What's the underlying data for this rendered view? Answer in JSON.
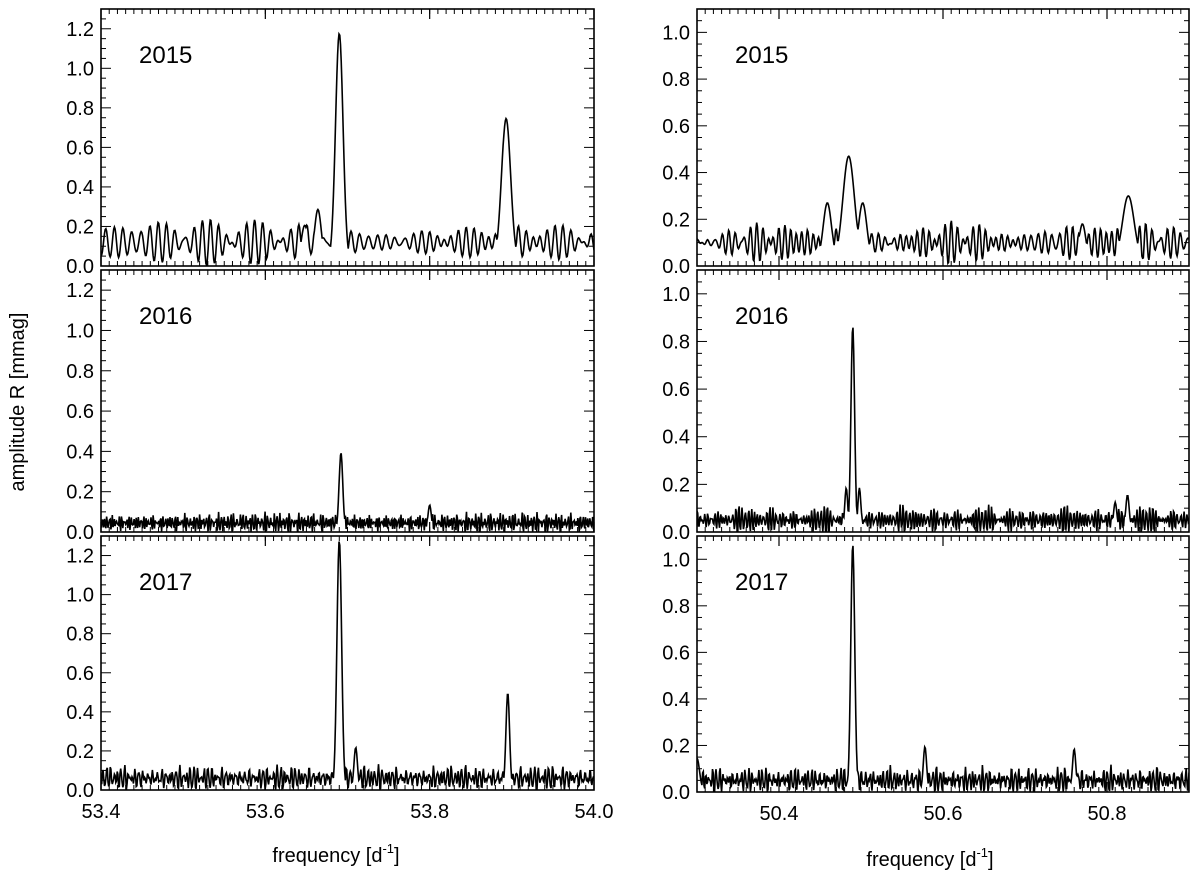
{
  "figure": {
    "ylabel": "amplitude R [mmag]",
    "xlabel_main": "frequency [d",
    "xlabel_sup": "-1",
    "xlabel_end": "]"
  },
  "chart_data": [
    {
      "type": "line",
      "panel": "left-top",
      "title": "2015",
      "xlim": [
        53.4,
        54.0
      ],
      "ylim": [
        0,
        1.3
      ],
      "yticks": [
        0.0,
        0.2,
        0.4,
        0.6,
        0.8,
        1.0,
        1.2
      ],
      "yticklabels": [
        "0.0",
        "0.2",
        "0.4",
        "0.6",
        "0.8",
        "1.0",
        "1.2"
      ],
      "xticks": [
        53.4,
        53.6,
        53.8,
        54.0
      ],
      "xticklabels": [],
      "baseline": 0.12,
      "noise": 0.08,
      "seed": 11,
      "nosc": 85,
      "peaks": [
        {
          "x": 53.69,
          "y": 1.14,
          "w": 0.0045
        },
        {
          "x": 53.893,
          "y": 0.71,
          "w": 0.0055
        },
        {
          "x": 53.664,
          "y": 0.25,
          "w": 0.004
        },
        {
          "x": 53.648,
          "y": 0.17,
          "w": 0.004
        }
      ]
    },
    {
      "type": "line",
      "panel": "left-middle",
      "title": "2016",
      "xlim": [
        53.4,
        54.0
      ],
      "ylim": [
        0,
        1.3
      ],
      "yticks": [
        0.0,
        0.2,
        0.4,
        0.6,
        0.8,
        1.0,
        1.2
      ],
      "yticklabels": [
        "0.0",
        "0.2",
        "0.4",
        "0.6",
        "0.8",
        "1.0",
        "1.2"
      ],
      "xticks": [
        53.4,
        53.6,
        53.8,
        54.0
      ],
      "xticklabels": [],
      "baseline": 0.045,
      "noise": 0.04,
      "seed": 23,
      "nosc": 200,
      "peaks": [
        {
          "x": 53.692,
          "y": 0.38,
          "w": 0.0022
        },
        {
          "x": 53.8,
          "y": 0.12,
          "w": 0.002
        }
      ]
    },
    {
      "type": "line",
      "panel": "left-bottom",
      "title": "2017",
      "xlim": [
        53.4,
        54.0
      ],
      "ylim": [
        0,
        1.3
      ],
      "yticks": [
        0.0,
        0.2,
        0.4,
        0.6,
        0.8,
        1.0,
        1.2
      ],
      "yticklabels": [
        "0.0",
        "0.2",
        "0.4",
        "0.6",
        "0.8",
        "1.0",
        "1.2"
      ],
      "xticks": [
        53.4,
        53.6,
        53.8,
        54.0
      ],
      "xticklabels": [
        "53.4",
        "53.6",
        "53.8",
        "54.0"
      ],
      "baseline": 0.06,
      "noise": 0.05,
      "seed": 37,
      "nosc": 170,
      "peaks": [
        {
          "x": 53.69,
          "y": 1.26,
          "w": 0.0028
        },
        {
          "x": 53.895,
          "y": 0.48,
          "w": 0.0022
        },
        {
          "x": 53.71,
          "y": 0.2,
          "w": 0.002
        }
      ]
    },
    {
      "type": "line",
      "panel": "right-top",
      "title": "2015",
      "xlim": [
        50.3,
        50.9
      ],
      "ylim": [
        0,
        1.1
      ],
      "yticks": [
        0.0,
        0.2,
        0.4,
        0.6,
        0.8,
        1.0
      ],
      "yticklabels": [
        "0.0",
        "0.2",
        "0.4",
        "0.6",
        "0.8",
        "1.0"
      ],
      "xticks": [
        50.4,
        50.6,
        50.8
      ],
      "xticklabels": [],
      "baseline": 0.1,
      "noise": 0.06,
      "seed": 51,
      "nosc": 85,
      "peaks": [
        {
          "x": 50.485,
          "y": 0.44,
          "w": 0.007
        },
        {
          "x": 50.502,
          "y": 0.24,
          "w": 0.005
        },
        {
          "x": 50.459,
          "y": 0.24,
          "w": 0.005
        },
        {
          "x": 50.826,
          "y": 0.27,
          "w": 0.007
        },
        {
          "x": 50.77,
          "y": 0.15,
          "w": 0.004
        }
      ]
    },
    {
      "type": "line",
      "panel": "right-middle",
      "title": "2016",
      "xlim": [
        50.3,
        50.9
      ],
      "ylim": [
        0,
        1.1
      ],
      "yticks": [
        0.0,
        0.2,
        0.4,
        0.6,
        0.8,
        1.0
      ],
      "yticklabels": [
        "0.0",
        "0.2",
        "0.4",
        "0.6",
        "0.8",
        "1.0"
      ],
      "xticks": [
        50.4,
        50.6,
        50.8
      ],
      "xticklabels": [],
      "baseline": 0.05,
      "noise": 0.045,
      "seed": 67,
      "nosc": 200,
      "peaks": [
        {
          "x": 50.49,
          "y": 0.85,
          "w": 0.0022
        },
        {
          "x": 50.482,
          "y": 0.17,
          "w": 0.0018
        },
        {
          "x": 50.498,
          "y": 0.17,
          "w": 0.0018
        },
        {
          "x": 50.825,
          "y": 0.14,
          "w": 0.002
        },
        {
          "x": 50.81,
          "y": 0.11,
          "w": 0.002
        }
      ]
    },
    {
      "type": "line",
      "panel": "right-bottom",
      "title": "2017",
      "xlim": [
        50.3,
        50.9
      ],
      "ylim": [
        0,
        1.1
      ],
      "yticks": [
        0.0,
        0.2,
        0.4,
        0.6,
        0.8,
        1.0
      ],
      "yticklabels": [
        "0.0",
        "0.2",
        "0.4",
        "0.6",
        "0.8",
        "1.0"
      ],
      "xticks": [
        50.4,
        50.6,
        50.8
      ],
      "xticklabels": [
        "50.4",
        "50.6",
        "50.8"
      ],
      "baseline": 0.05,
      "noise": 0.045,
      "seed": 83,
      "nosc": 170,
      "peaks": [
        {
          "x": 50.49,
          "y": 1.05,
          "w": 0.0024
        },
        {
          "x": 50.578,
          "y": 0.18,
          "w": 0.002
        },
        {
          "x": 50.76,
          "y": 0.17,
          "w": 0.002
        },
        {
          "x": 50.3,
          "y": 0.13,
          "w": 0.003
        }
      ]
    }
  ]
}
